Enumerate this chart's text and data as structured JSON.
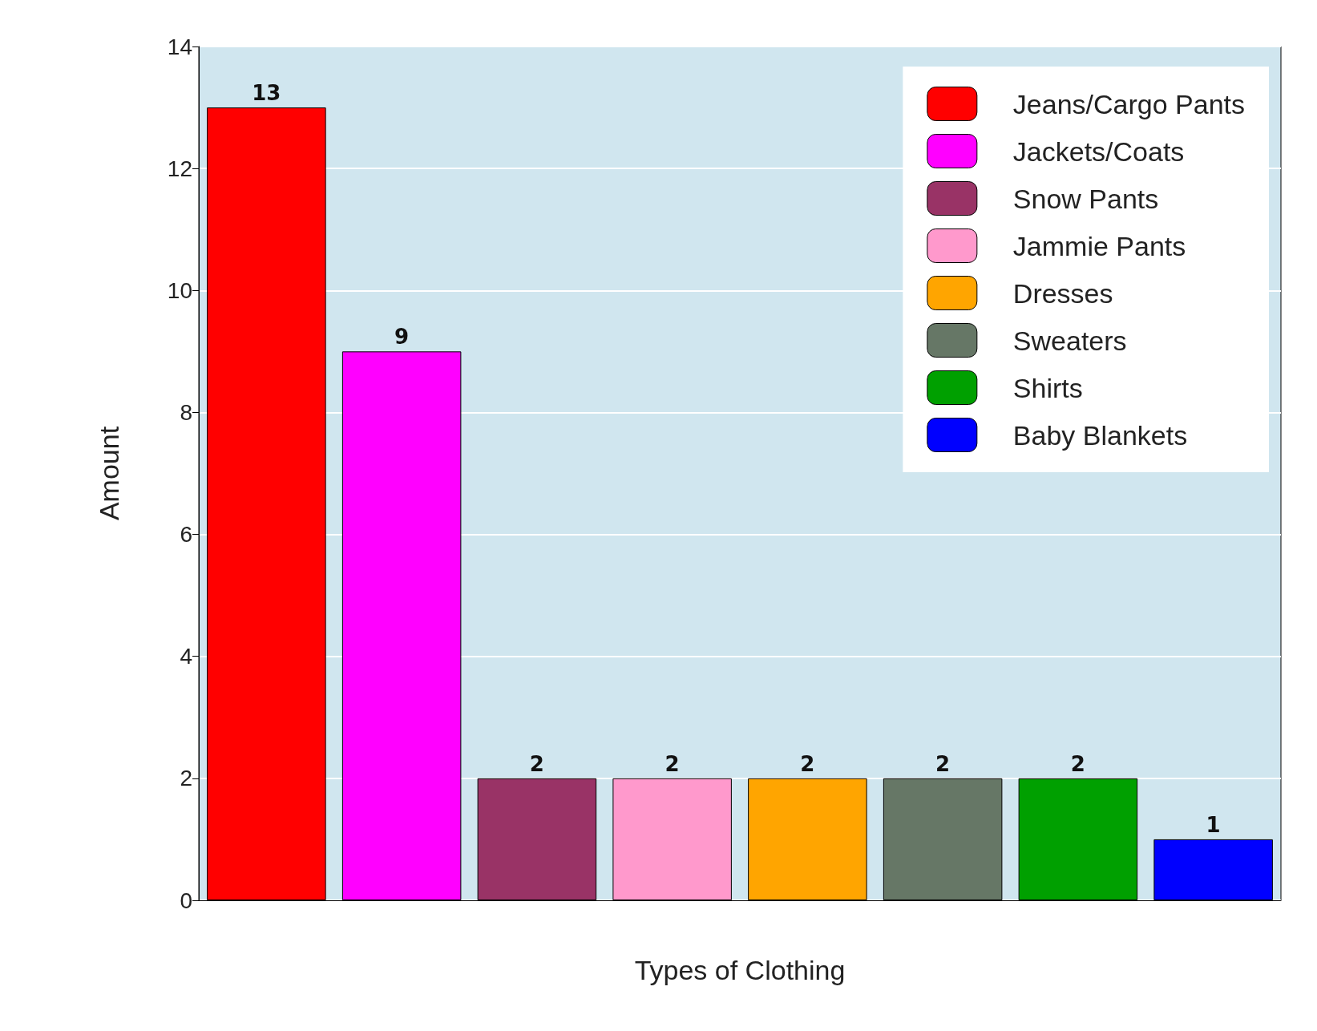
{
  "chart_data": {
    "type": "bar",
    "xlabel": "Types of Clothing",
    "ylabel": "Amount",
    "categories": [
      null,
      null,
      null,
      null,
      null,
      null,
      null,
      null
    ],
    "series": [
      {
        "name": "Jeans/Cargo Pants",
        "color": "#ff0000",
        "values": [
          13,
          null,
          null,
          null,
          null,
          null,
          null,
          null
        ]
      },
      {
        "name": "Jackets/Coats",
        "color": "#ff00ff",
        "values": [
          null,
          9,
          null,
          null,
          null,
          null,
          null,
          null
        ]
      },
      {
        "name": "Snow Pants",
        "color": "#993366",
        "values": [
          null,
          null,
          2,
          null,
          null,
          null,
          null,
          null
        ]
      },
      {
        "name": "Jammie Pants",
        "color": "#ff99cc",
        "values": [
          null,
          null,
          null,
          2,
          null,
          null,
          null,
          null
        ]
      },
      {
        "name": "Dresses",
        "color": "#ffa500",
        "values": [
          null,
          null,
          null,
          null,
          2,
          null,
          null,
          null
        ]
      },
      {
        "name": "Sweaters",
        "color": "#667766",
        "values": [
          null,
          null,
          null,
          null,
          null,
          2,
          null,
          null
        ]
      },
      {
        "name": "Shirts",
        "color": "#00a000",
        "values": [
          null,
          null,
          null,
          null,
          null,
          null,
          2,
          null
        ]
      },
      {
        "name": "Baby Blankets",
        "color": "#0000ff",
        "values": [
          null,
          null,
          null,
          null,
          null,
          null,
          null,
          1
        ]
      }
    ],
    "stacked": true,
    "ylim": [
      0,
      14
    ],
    "yticks": [
      0,
      2,
      4,
      6,
      8,
      10,
      12,
      14
    ],
    "grid": "y",
    "legend": "top right",
    "data_labels": true
  }
}
